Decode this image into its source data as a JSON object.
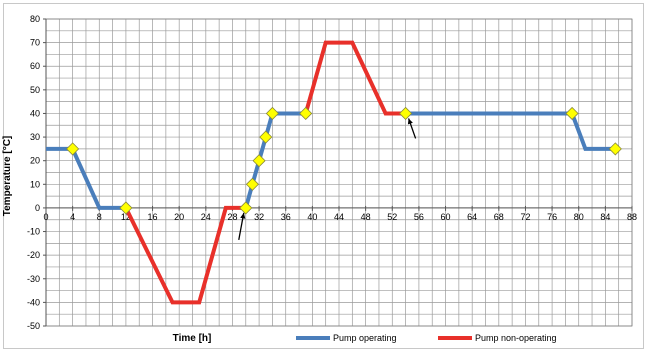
{
  "chart_data": {
    "type": "line",
    "xlabel": "Time [h]",
    "ylabel": "Temperature [°C]",
    "xlim": [
      0,
      88
    ],
    "ylim": [
      -50,
      80
    ],
    "x_ticks": [
      0,
      4,
      8,
      12,
      16,
      20,
      24,
      28,
      32,
      36,
      40,
      44,
      48,
      52,
      56,
      60,
      64,
      68,
      72,
      76,
      80,
      84,
      88
    ],
    "y_ticks": [
      -50,
      -40,
      -30,
      -20,
      -10,
      0,
      10,
      20,
      30,
      40,
      50,
      60,
      70,
      80
    ],
    "grid": true,
    "legend_position": "bottom",
    "series": [
      {
        "name": "Pump operating",
        "color": "#4a7ebb",
        "segments": [
          [
            [
              0,
              25
            ],
            [
              4,
              25
            ],
            [
              8,
              0
            ],
            [
              12,
              0
            ]
          ],
          [
            [
              30,
              0
            ],
            [
              31,
              10
            ],
            [
              32,
              20
            ],
            [
              33,
              30
            ],
            [
              34,
              40
            ],
            [
              39,
              40
            ]
          ],
          [
            [
              54,
              40
            ],
            [
              79,
              40
            ],
            [
              81,
              25
            ],
            [
              85.5,
              25
            ]
          ]
        ]
      },
      {
        "name": "Pump non-operating",
        "color": "#e8302a",
        "segments": [
          [
            [
              12,
              0
            ],
            [
              19,
              -40
            ],
            [
              23,
              -40
            ],
            [
              27,
              0
            ],
            [
              30,
              0
            ]
          ],
          [
            [
              39,
              40
            ],
            [
              42,
              70
            ],
            [
              46,
              70
            ],
            [
              51,
              40
            ],
            [
              54,
              40
            ]
          ]
        ]
      }
    ],
    "markers": {
      "color": "#ffff00",
      "points": [
        [
          4,
          25
        ],
        [
          12,
          0
        ],
        [
          30,
          0
        ],
        [
          31,
          10
        ],
        [
          32,
          20
        ],
        [
          33,
          30
        ],
        [
          34,
          40
        ],
        [
          39,
          40
        ],
        [
          54,
          40
        ],
        [
          79,
          40
        ],
        [
          85.5,
          25
        ]
      ]
    },
    "annotations": [
      {
        "type": "arrow",
        "point": [
          30,
          0
        ]
      },
      {
        "type": "arrow",
        "point": [
          54,
          40
        ]
      }
    ]
  }
}
